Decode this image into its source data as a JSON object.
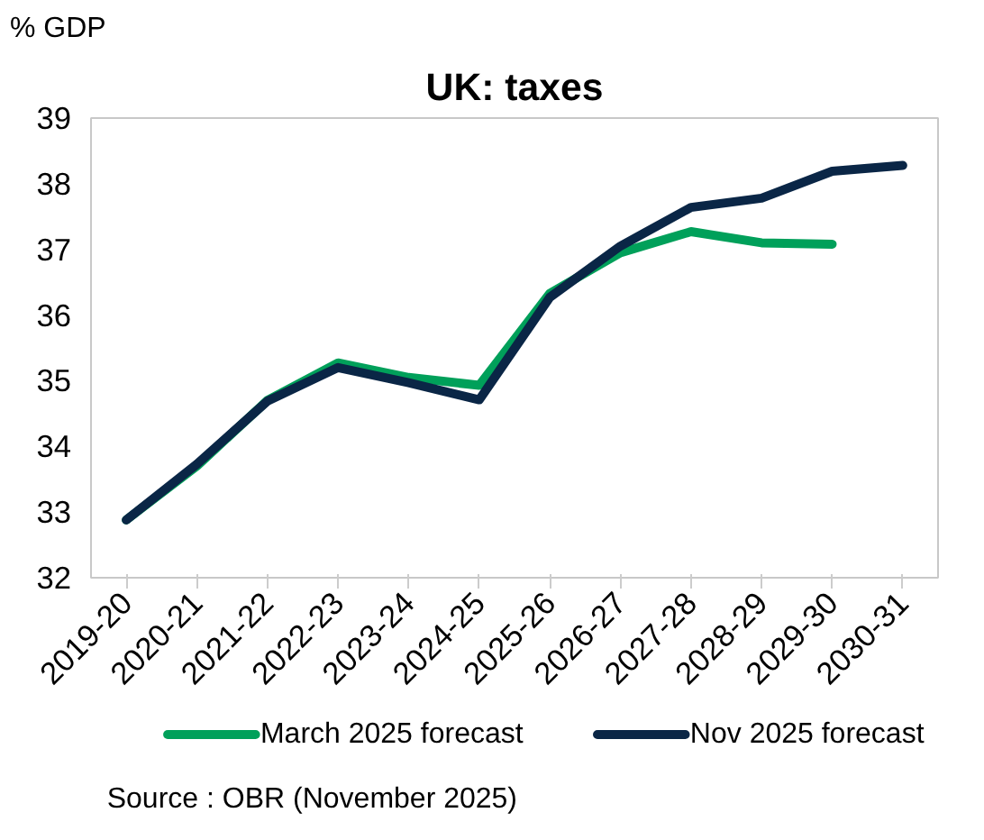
{
  "chart_data": {
    "type": "line",
    "title": "UK: taxes",
    "ylabel": "% GDP",
    "categories": [
      "2019-20",
      "2020-21",
      "2021-22",
      "2022-23",
      "2023-24",
      "2024-25",
      "2025-26",
      "2026-27",
      "2027-28",
      "2028-29",
      "2029-30",
      "2030-31"
    ],
    "series": [
      {
        "name": "March 2025 forecast",
        "color": "#00a05a",
        "values": [
          32.88,
          33.7,
          34.7,
          35.27,
          35.05,
          34.93,
          36.33,
          36.95,
          37.27,
          37.1,
          37.08,
          null
        ]
      },
      {
        "name": "Nov 2025 forecast",
        "color": "#0a2646",
        "values": [
          32.88,
          33.73,
          34.69,
          35.2,
          34.97,
          34.71,
          36.27,
          37.05,
          37.64,
          37.78,
          38.19,
          38.28
        ]
      }
    ],
    "ylim": [
      32,
      39
    ],
    "yticks": [
      32,
      33,
      34,
      35,
      36,
      37,
      38,
      39
    ],
    "grid": false,
    "legend": "bottom",
    "marker": "none",
    "line_style": "solid",
    "annotations": [
      "Source : OBR (November 2025)"
    ]
  }
}
